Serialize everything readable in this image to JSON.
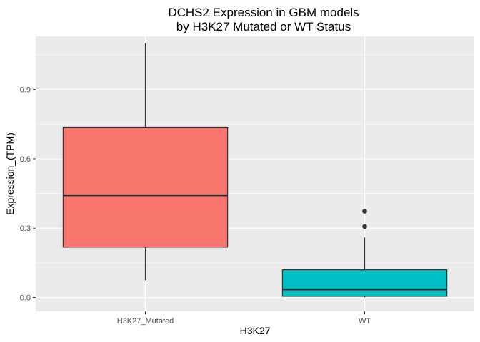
{
  "chart_data": {
    "type": "box",
    "title_lines": [
      "DCHS2 Expression in GBM models",
      "by H3K27 Mutated or WT Status"
    ],
    "xlabel": "H3K27",
    "ylabel": "Expression_(TPM)",
    "ylim": [
      -0.06,
      1.13
    ],
    "yticks": [
      0.0,
      0.3,
      0.6,
      0.9
    ],
    "ytick_labels": [
      "0.0",
      "0.3",
      "0.6",
      "0.9"
    ],
    "grid": true,
    "legend": "none",
    "categories": [
      "H3K27_Mutated",
      "WT"
    ],
    "boxes": [
      {
        "category": "H3K27_Mutated",
        "min": 0.075,
        "q1": 0.218,
        "median": 0.442,
        "q3": 0.737,
        "max": 1.1,
        "outliers": [],
        "color": "#F8766D"
      },
      {
        "category": "WT",
        "min": 0.0,
        "q1": 0.005,
        "median": 0.035,
        "q3": 0.12,
        "max": 0.26,
        "outliers": [
          0.307,
          0.373
        ],
        "color": "#00BFC4"
      }
    ],
    "colors": {
      "panel_background": "#EBEBEB",
      "grid": "#FFFFFF",
      "box_outline": "#333333"
    }
  }
}
